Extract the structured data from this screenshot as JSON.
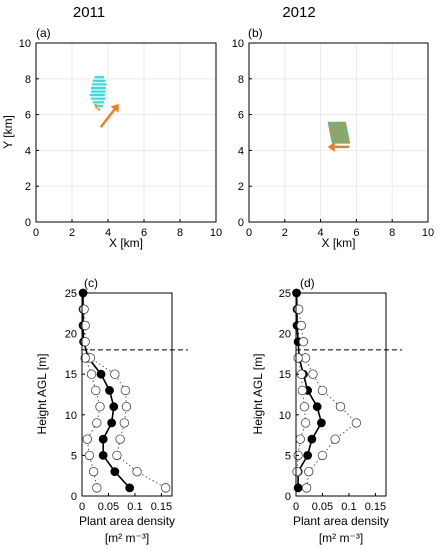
{
  "column_titles": [
    "2011",
    "2012"
  ],
  "chart_data": [
    {
      "id": "a",
      "type": "scatter",
      "panel_label": "(a)",
      "xlabel": "X [km]",
      "ylabel": "Y [km]",
      "xlim": [
        0,
        10
      ],
      "ylim": [
        0,
        10
      ],
      "xticks": [
        0,
        2,
        4,
        6,
        8,
        10
      ],
      "yticks": [
        0,
        2,
        4,
        6,
        8,
        10
      ],
      "grid": true,
      "cluster": {
        "color": "#33e0e0",
        "edge_color": "#e8862a",
        "center": [
          3.5,
          7.0
        ]
      },
      "arrow": {
        "color": "#f07d1a",
        "from": [
          3.6,
          5.3
        ],
        "to": [
          4.6,
          6.6
        ]
      }
    },
    {
      "id": "b",
      "type": "scatter",
      "panel_label": "(b)",
      "xlabel": "X [km]",
      "ylabel": "",
      "xlim": [
        0,
        10
      ],
      "ylim": [
        0,
        10
      ],
      "xticks": [
        0,
        2,
        4,
        6,
        8,
        10
      ],
      "yticks": [
        0,
        2,
        4,
        6,
        8,
        10
      ],
      "grid": true,
      "cluster": {
        "color": "#2ec8b0",
        "edge_color": "#e8862a",
        "center": [
          5.0,
          4.9
        ]
      },
      "arrow": {
        "color": "#f07d1a",
        "from": [
          5.6,
          4.2
        ],
        "to": [
          4.4,
          4.2
        ]
      }
    },
    {
      "id": "c",
      "type": "line",
      "panel_label": "(c)",
      "xlabel": "Plant area density",
      "xlabel_unit": "[m² m⁻³]",
      "ylabel": "Height AGL [m]",
      "xlim": [
        0,
        0.17
      ],
      "ylim": [
        0,
        25
      ],
      "xticks": [
        0,
        0.05,
        0.1,
        0.15
      ],
      "xticklabels": [
        "0",
        "0.05",
        "0.1",
        "0.15"
      ],
      "yticks": [
        0,
        5,
        10,
        15,
        20,
        25
      ],
      "canopy_height": 18,
      "series": [
        {
          "style": "solid-filled",
          "points": [
            [
              0.002,
              25
            ],
            [
              0.002,
              23
            ],
            [
              0.002,
              21
            ],
            [
              0.003,
              19
            ],
            [
              0.012,
              17
            ],
            [
              0.036,
              15
            ],
            [
              0.052,
              13
            ],
            [
              0.06,
              11
            ],
            [
              0.056,
              9
            ],
            [
              0.04,
              7
            ],
            [
              0.04,
              5
            ],
            [
              0.062,
              3
            ],
            [
              0.09,
              1
            ]
          ]
        },
        {
          "style": "dotted-open-upper",
          "points": [
            [
              0.004,
              23
            ],
            [
              0.006,
              21
            ],
            [
              0.006,
              19
            ],
            [
              0.016,
              17
            ],
            [
              0.062,
              15
            ],
            [
              0.082,
              13
            ],
            [
              0.084,
              11
            ],
            [
              0.08,
              9
            ],
            [
              0.072,
              7
            ],
            [
              0.066,
              5
            ],
            [
              0.104,
              3
            ],
            [
              0.158,
              1
            ]
          ]
        },
        {
          "style": "dotted-open-lower",
          "points": [
            [
              0.006,
              17
            ],
            [
              0.018,
              15
            ],
            [
              0.026,
              13
            ],
            [
              0.034,
              11
            ],
            [
              0.028,
              9
            ],
            [
              0.01,
              7
            ],
            [
              0.014,
              5
            ],
            [
              0.022,
              3
            ],
            [
              0.028,
              1
            ]
          ]
        }
      ]
    },
    {
      "id": "d",
      "type": "line",
      "panel_label": "(d)",
      "xlabel": "Plant area density",
      "xlabel_unit": "[m² m⁻³]",
      "ylabel": "Height AGL [m]",
      "xlim": [
        0,
        0.17
      ],
      "ylim": [
        0,
        25
      ],
      "xticks": [
        0,
        0.05,
        0.1,
        0.15
      ],
      "xticklabels": [
        "0",
        "0.05",
        "0.1",
        "0.15"
      ],
      "yticks": [
        0,
        5,
        10,
        15,
        20,
        25
      ],
      "canopy_height": 18,
      "series": [
        {
          "style": "solid-filled",
          "points": [
            [
              0.001,
              25
            ],
            [
              0.002,
              23
            ],
            [
              0.002,
              21
            ],
            [
              0.004,
              19
            ],
            [
              0.006,
              17
            ],
            [
              0.014,
              15
            ],
            [
              0.022,
              13
            ],
            [
              0.04,
              11
            ],
            [
              0.048,
              9
            ],
            [
              0.03,
              7
            ],
            [
              0.022,
              5
            ],
            [
              0.004,
              3
            ],
            [
              0.004,
              1
            ]
          ]
        },
        {
          "style": "dotted-open-upper",
          "points": [
            [
              0.005,
              23
            ],
            [
              0.01,
              21
            ],
            [
              0.014,
              19
            ],
            [
              0.018,
              17
            ],
            [
              0.032,
              15
            ],
            [
              0.05,
              13
            ],
            [
              0.084,
              11
            ],
            [
              0.114,
              9
            ],
            [
              0.074,
              7
            ],
            [
              0.05,
              5
            ],
            [
              0.024,
              3
            ],
            [
              0.02,
              1
            ]
          ]
        },
        {
          "style": "dotted-open-lower",
          "points": [
            [
              0.004,
              17
            ],
            [
              0.01,
              15
            ],
            [
              0.012,
              13
            ],
            [
              0.016,
              11
            ],
            [
              0.018,
              9
            ],
            [
              0.008,
              7
            ],
            [
              0.004,
              5
            ],
            [
              0.002,
              3
            ]
          ]
        }
      ]
    }
  ]
}
